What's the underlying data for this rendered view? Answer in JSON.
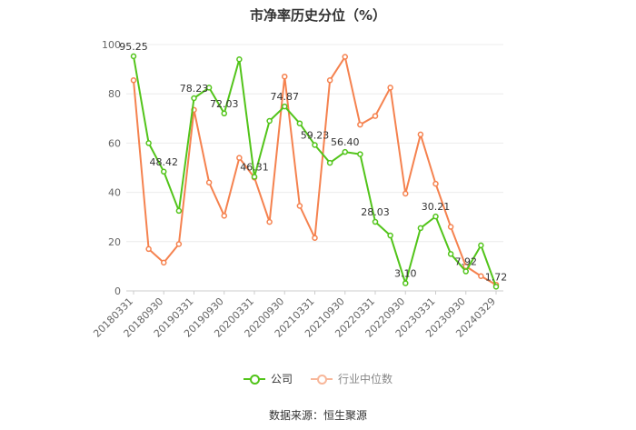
{
  "chart_data": {
    "type": "line",
    "title": "市净率历史分位（%）",
    "categories": [
      "20180331",
      "20180630",
      "20180930",
      "20181231",
      "20190331",
      "20190630",
      "20190930",
      "20191231",
      "20200331",
      "20200630",
      "20200930",
      "20201231",
      "20210331",
      "20210630",
      "20210930",
      "20211231",
      "20220331",
      "20220630",
      "20220930",
      "20221231",
      "20230331",
      "20230630",
      "20230930",
      "20231231",
      "20240329"
    ],
    "x_tick_labels": [
      "20180331",
      "20180930",
      "20190331",
      "20190930",
      "20200331",
      "20200930",
      "20210331",
      "20210930",
      "20220331",
      "20220930",
      "20230331",
      "20230930",
      "20240329"
    ],
    "ylim": [
      0,
      100
    ],
    "yticks": [
      0,
      20,
      40,
      60,
      80,
      100
    ],
    "grid": true,
    "legend_position": "bottom",
    "series": [
      {
        "name": "公司",
        "color": "#52c41a",
        "values": [
          95.25,
          60.0,
          48.42,
          32.5,
          78.23,
          82.5,
          72.03,
          94.0,
          46.31,
          69.0,
          74.87,
          68.0,
          59.23,
          52.0,
          56.4,
          55.5,
          28.03,
          22.5,
          3.1,
          25.5,
          30.21,
          15.0,
          7.92,
          18.5,
          1.72
        ],
        "labels": {
          "0": "95.25",
          "2": "48.42",
          "4": "78.23",
          "6": "72.03",
          "8": "46.31",
          "10": "74.87",
          "12": "59.23",
          "14": "56.40",
          "16": "28.03",
          "18": "3.10",
          "20": "30.21",
          "22": "7.92",
          "24": "1.72"
        }
      },
      {
        "name": "行业中位数",
        "color": "#f5824f",
        "values": [
          85.5,
          17.0,
          11.5,
          19.0,
          73.5,
          44.0,
          30.5,
          54.0,
          46.0,
          28.0,
          87.0,
          34.5,
          21.5,
          85.5,
          95.0,
          67.5,
          71.0,
          82.5,
          39.5,
          63.5,
          43.5,
          26.0,
          10.0,
          6.0,
          2.5
        ]
      }
    ]
  },
  "footer": {
    "source": "数据来源：恒生聚源"
  }
}
